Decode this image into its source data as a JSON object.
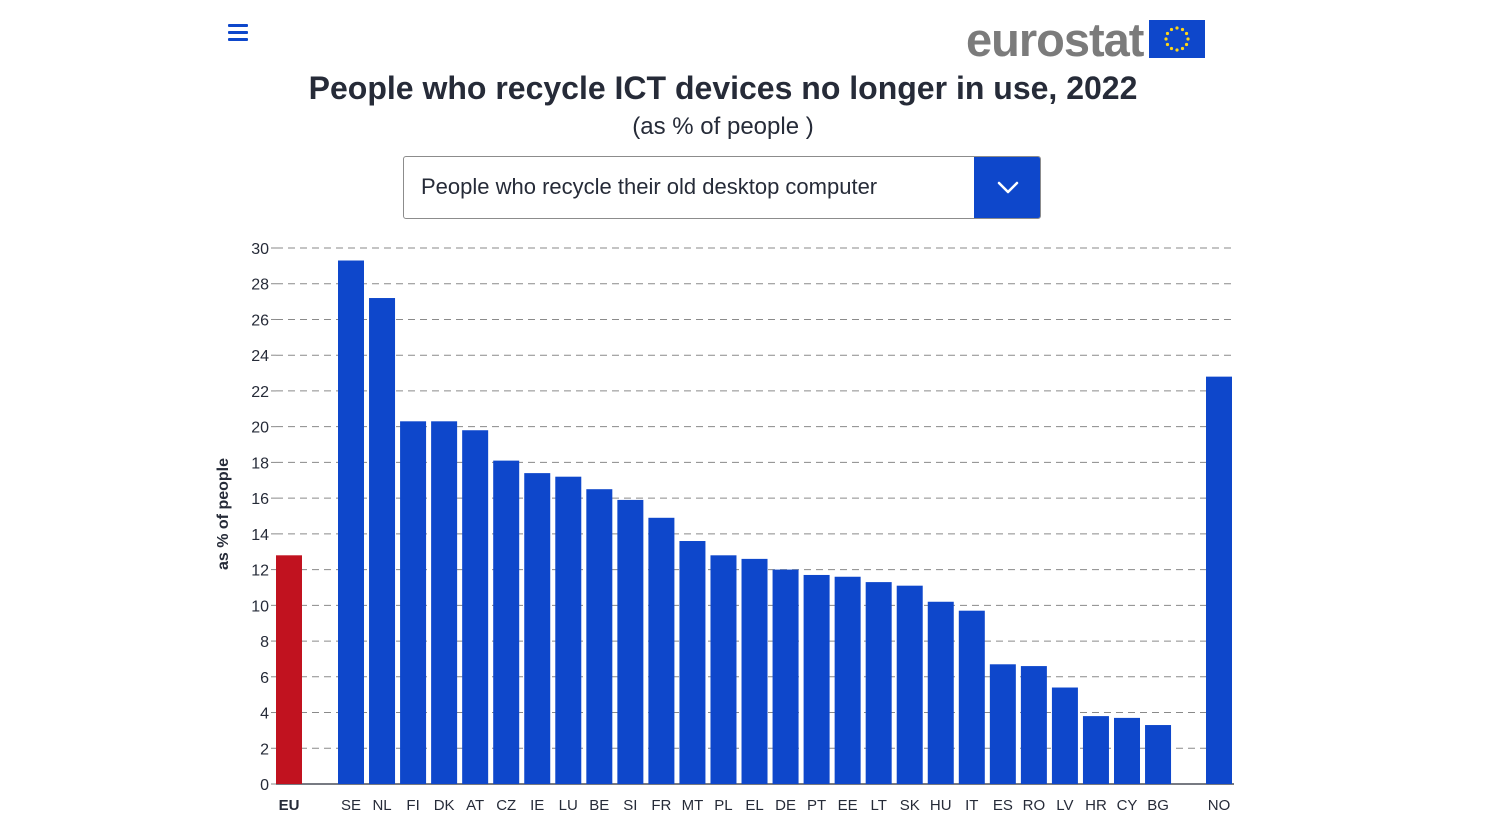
{
  "header": {
    "menu_icon": "hamburger-menu-icon",
    "logo_text": "eurostat",
    "logo_flag_icon": "eu-flag-icon"
  },
  "title": "People who recycle ICT devices no longer in use, 2022",
  "subtitle": "(as % of people )",
  "indicator_select": {
    "value": "People who recycle their old desktop computer",
    "icon": "chevron-down-icon"
  },
  "colors": {
    "accent": "#0e47cb",
    "eu_bar": "#c1121f",
    "bar": "#0e47cb",
    "logo_grey": "#7b7b7b",
    "flag_star": "#ffd617"
  },
  "chart_data": {
    "type": "bar",
    "ylabel": "as % of people",
    "ylim": [
      0,
      30
    ],
    "yticks": [
      0,
      2,
      4,
      6,
      8,
      10,
      12,
      14,
      16,
      18,
      20,
      22,
      24,
      26,
      28,
      30
    ],
    "grid": true,
    "categories": [
      "EU",
      "SE",
      "NL",
      "FI",
      "DK",
      "AT",
      "CZ",
      "IE",
      "LU",
      "BE",
      "SI",
      "FR",
      "MT",
      "PL",
      "EL",
      "DE",
      "PT",
      "EE",
      "LT",
      "SK",
      "HU",
      "IT",
      "ES",
      "RO",
      "LV",
      "HR",
      "CY",
      "BG",
      "NO"
    ],
    "values": [
      12.8,
      29.3,
      27.2,
      20.3,
      20.3,
      19.8,
      18.1,
      17.4,
      17.2,
      16.5,
      15.9,
      14.9,
      13.6,
      12.8,
      12.6,
      12.0,
      11.7,
      11.6,
      11.3,
      11.1,
      10.2,
      9.7,
      6.7,
      6.6,
      5.4,
      3.8,
      3.7,
      3.3,
      22.8
    ]
  }
}
